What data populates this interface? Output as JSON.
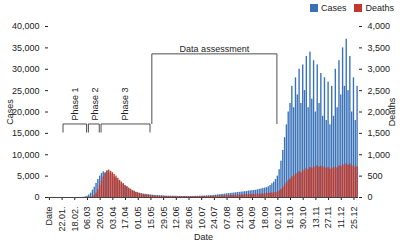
{
  "chart_data": {
    "type": "bar",
    "x_label": "Date",
    "y_label": "Cases",
    "y2_label": "Deaths",
    "categories": [
      "Date",
      null,
      null,
      null,
      null,
      null,
      null,
      "22.01.",
      null,
      null,
      null,
      null,
      null,
      null,
      "18.02.",
      null,
      null,
      null,
      null,
      null,
      null,
      "06.03",
      null,
      null,
      null,
      null,
      null,
      null,
      "20.03",
      null,
      null,
      null,
      null,
      null,
      null,
      "03.04",
      null,
      null,
      null,
      null,
      null,
      null,
      "17.04",
      null,
      null,
      null,
      null,
      null,
      null,
      "01.05",
      null,
      null,
      null,
      null,
      null,
      null,
      "15.05",
      null,
      null,
      null,
      null,
      null,
      null,
      "29.05",
      null,
      null,
      null,
      null,
      null,
      null,
      "12.06",
      null,
      null,
      null,
      null,
      null,
      null,
      "26.06",
      null,
      null,
      null,
      null,
      null,
      null,
      "10.07",
      null,
      null,
      null,
      null,
      null,
      null,
      "24.07",
      null,
      null,
      null,
      null,
      null,
      null,
      "07.08",
      null,
      null,
      null,
      null,
      null,
      null,
      "21.08",
      null,
      null,
      null,
      null,
      null,
      null,
      "04.09",
      null,
      null,
      null,
      null,
      null,
      null,
      "18.09",
      null,
      null,
      null,
      null,
      null,
      null,
      "02.10",
      null,
      null,
      null,
      null,
      null,
      null,
      "16.10",
      null,
      null,
      null,
      null,
      null,
      null,
      "30.10",
      null,
      null,
      null,
      null,
      null,
      null,
      "13.11",
      null,
      null,
      null,
      null,
      null,
      null,
      "27.11",
      null,
      null,
      null,
      null,
      null,
      null,
      "11.12",
      null,
      null,
      null,
      null,
      null,
      null,
      "25.12",
      null,
      null
    ],
    "series": [
      {
        "name": "Cases",
        "color": "#3a72b8",
        "values": [
          0,
          0,
          0,
          0,
          0,
          0,
          0,
          0,
          0,
          0,
          0,
          0,
          0,
          0,
          0,
          0,
          0,
          5,
          20,
          50,
          150,
          300,
          600,
          1000,
          1700,
          2400,
          3300,
          4200,
          5000,
          5600,
          6000,
          5800,
          6200,
          5500,
          5900,
          5300,
          4800,
          4500,
          3900,
          3600,
          3000,
          3200,
          2700,
          2500,
          2100,
          1900,
          1600,
          1500,
          1200,
          1100,
          1000,
          900,
          800,
          750,
          700,
          650,
          600,
          550,
          500,
          480,
          450,
          420,
          400,
          380,
          350,
          330,
          320,
          300,
          300,
          290,
          280,
          270,
          260,
          250,
          250,
          240,
          240,
          230,
          240,
          250,
          260,
          270,
          280,
          300,
          320,
          340,
          360,
          380,
          400,
          430,
          460,
          500,
          550,
          600,
          650,
          700,
          750,
          800,
          850,
          900,
          950,
          1000,
          1050,
          1100,
          1150,
          1200,
          1250,
          1300,
          1350,
          1400,
          1500,
          1550,
          1600,
          1650,
          1700,
          1800,
          1900,
          2000,
          2100,
          2200,
          2300,
          2500,
          2800,
          3200,
          3600,
          4200,
          5000,
          6500,
          8500,
          11000,
          14000,
          17000,
          20000,
          22000,
          26000,
          21000,
          28000,
          24000,
          30000,
          22000,
          31000,
          25000,
          33000,
          21000,
          34000,
          23000,
          32000,
          20000,
          31000,
          22000,
          29000,
          19000,
          28000,
          18000,
          27000,
          17000,
          26000,
          19000,
          30000,
          21000,
          32000,
          24000,
          35000,
          26000,
          37000,
          25000,
          33000,
          20000,
          28000,
          18000,
          26000
        ]
      },
      {
        "name": "Deaths",
        "color": "#c0392b",
        "axis": "y2",
        "values": [
          0,
          0,
          0,
          0,
          0,
          0,
          0,
          0,
          0,
          0,
          0,
          0,
          0,
          0,
          0,
          0,
          0,
          0,
          0,
          0,
          2,
          5,
          8,
          12,
          20,
          50,
          100,
          180,
          280,
          380,
          480,
          560,
          620,
          640,
          610,
          580,
          540,
          500,
          450,
          400,
          360,
          320,
          280,
          250,
          220,
          190,
          160,
          140,
          120,
          100,
          90,
          80,
          70,
          60,
          55,
          50,
          45,
          40,
          35,
          30,
          30,
          28,
          26,
          25,
          24,
          23,
          22,
          21,
          20,
          20,
          20,
          20,
          19,
          19,
          18,
          18,
          18,
          18,
          18,
          19,
          19,
          20,
          20,
          21,
          22,
          22,
          23,
          24,
          25,
          26,
          27,
          28,
          30,
          32,
          34,
          36,
          38,
          40,
          42,
          44,
          46,
          48,
          50,
          52,
          54,
          56,
          58,
          60,
          62,
          64,
          66,
          68,
          70,
          72,
          74,
          76,
          78,
          80,
          84,
          88,
          92,
          96,
          100,
          105,
          110,
          115,
          120,
          150,
          190,
          240,
          290,
          340,
          390,
          430,
          480,
          500,
          540,
          560,
          600,
          580,
          640,
          620,
          680,
          650,
          700,
          680,
          720,
          700,
          740,
          710,
          730,
          690,
          720,
          680,
          700,
          660,
          690,
          670,
          710,
          690,
          740,
          720,
          770,
          740,
          790,
          760,
          780,
          720,
          750,
          700,
          720
        ]
      }
    ],
    "ylim": [
      0,
      40000
    ],
    "yticks": [
      0,
      5000,
      10000,
      15000,
      20000,
      25000,
      30000,
      35000,
      40000
    ],
    "y2lim": [
      0,
      4000
    ],
    "y2ticks": [
      0,
      500,
      1000,
      1500,
      2000,
      2500,
      3000,
      3500,
      4000
    ],
    "annotations": [
      {
        "text": "Phase 1",
        "from": "22.01.",
        "to": "06.03"
      },
      {
        "text": "Phase 2",
        "from": "06.03",
        "to": "20.03"
      },
      {
        "text": "Phase 3",
        "from": "20.03",
        "to": "15.05"
      },
      {
        "text": "Data assessment",
        "from": "15.05",
        "to": "02.10"
      }
    ],
    "legend": "top-right",
    "grid": false
  }
}
